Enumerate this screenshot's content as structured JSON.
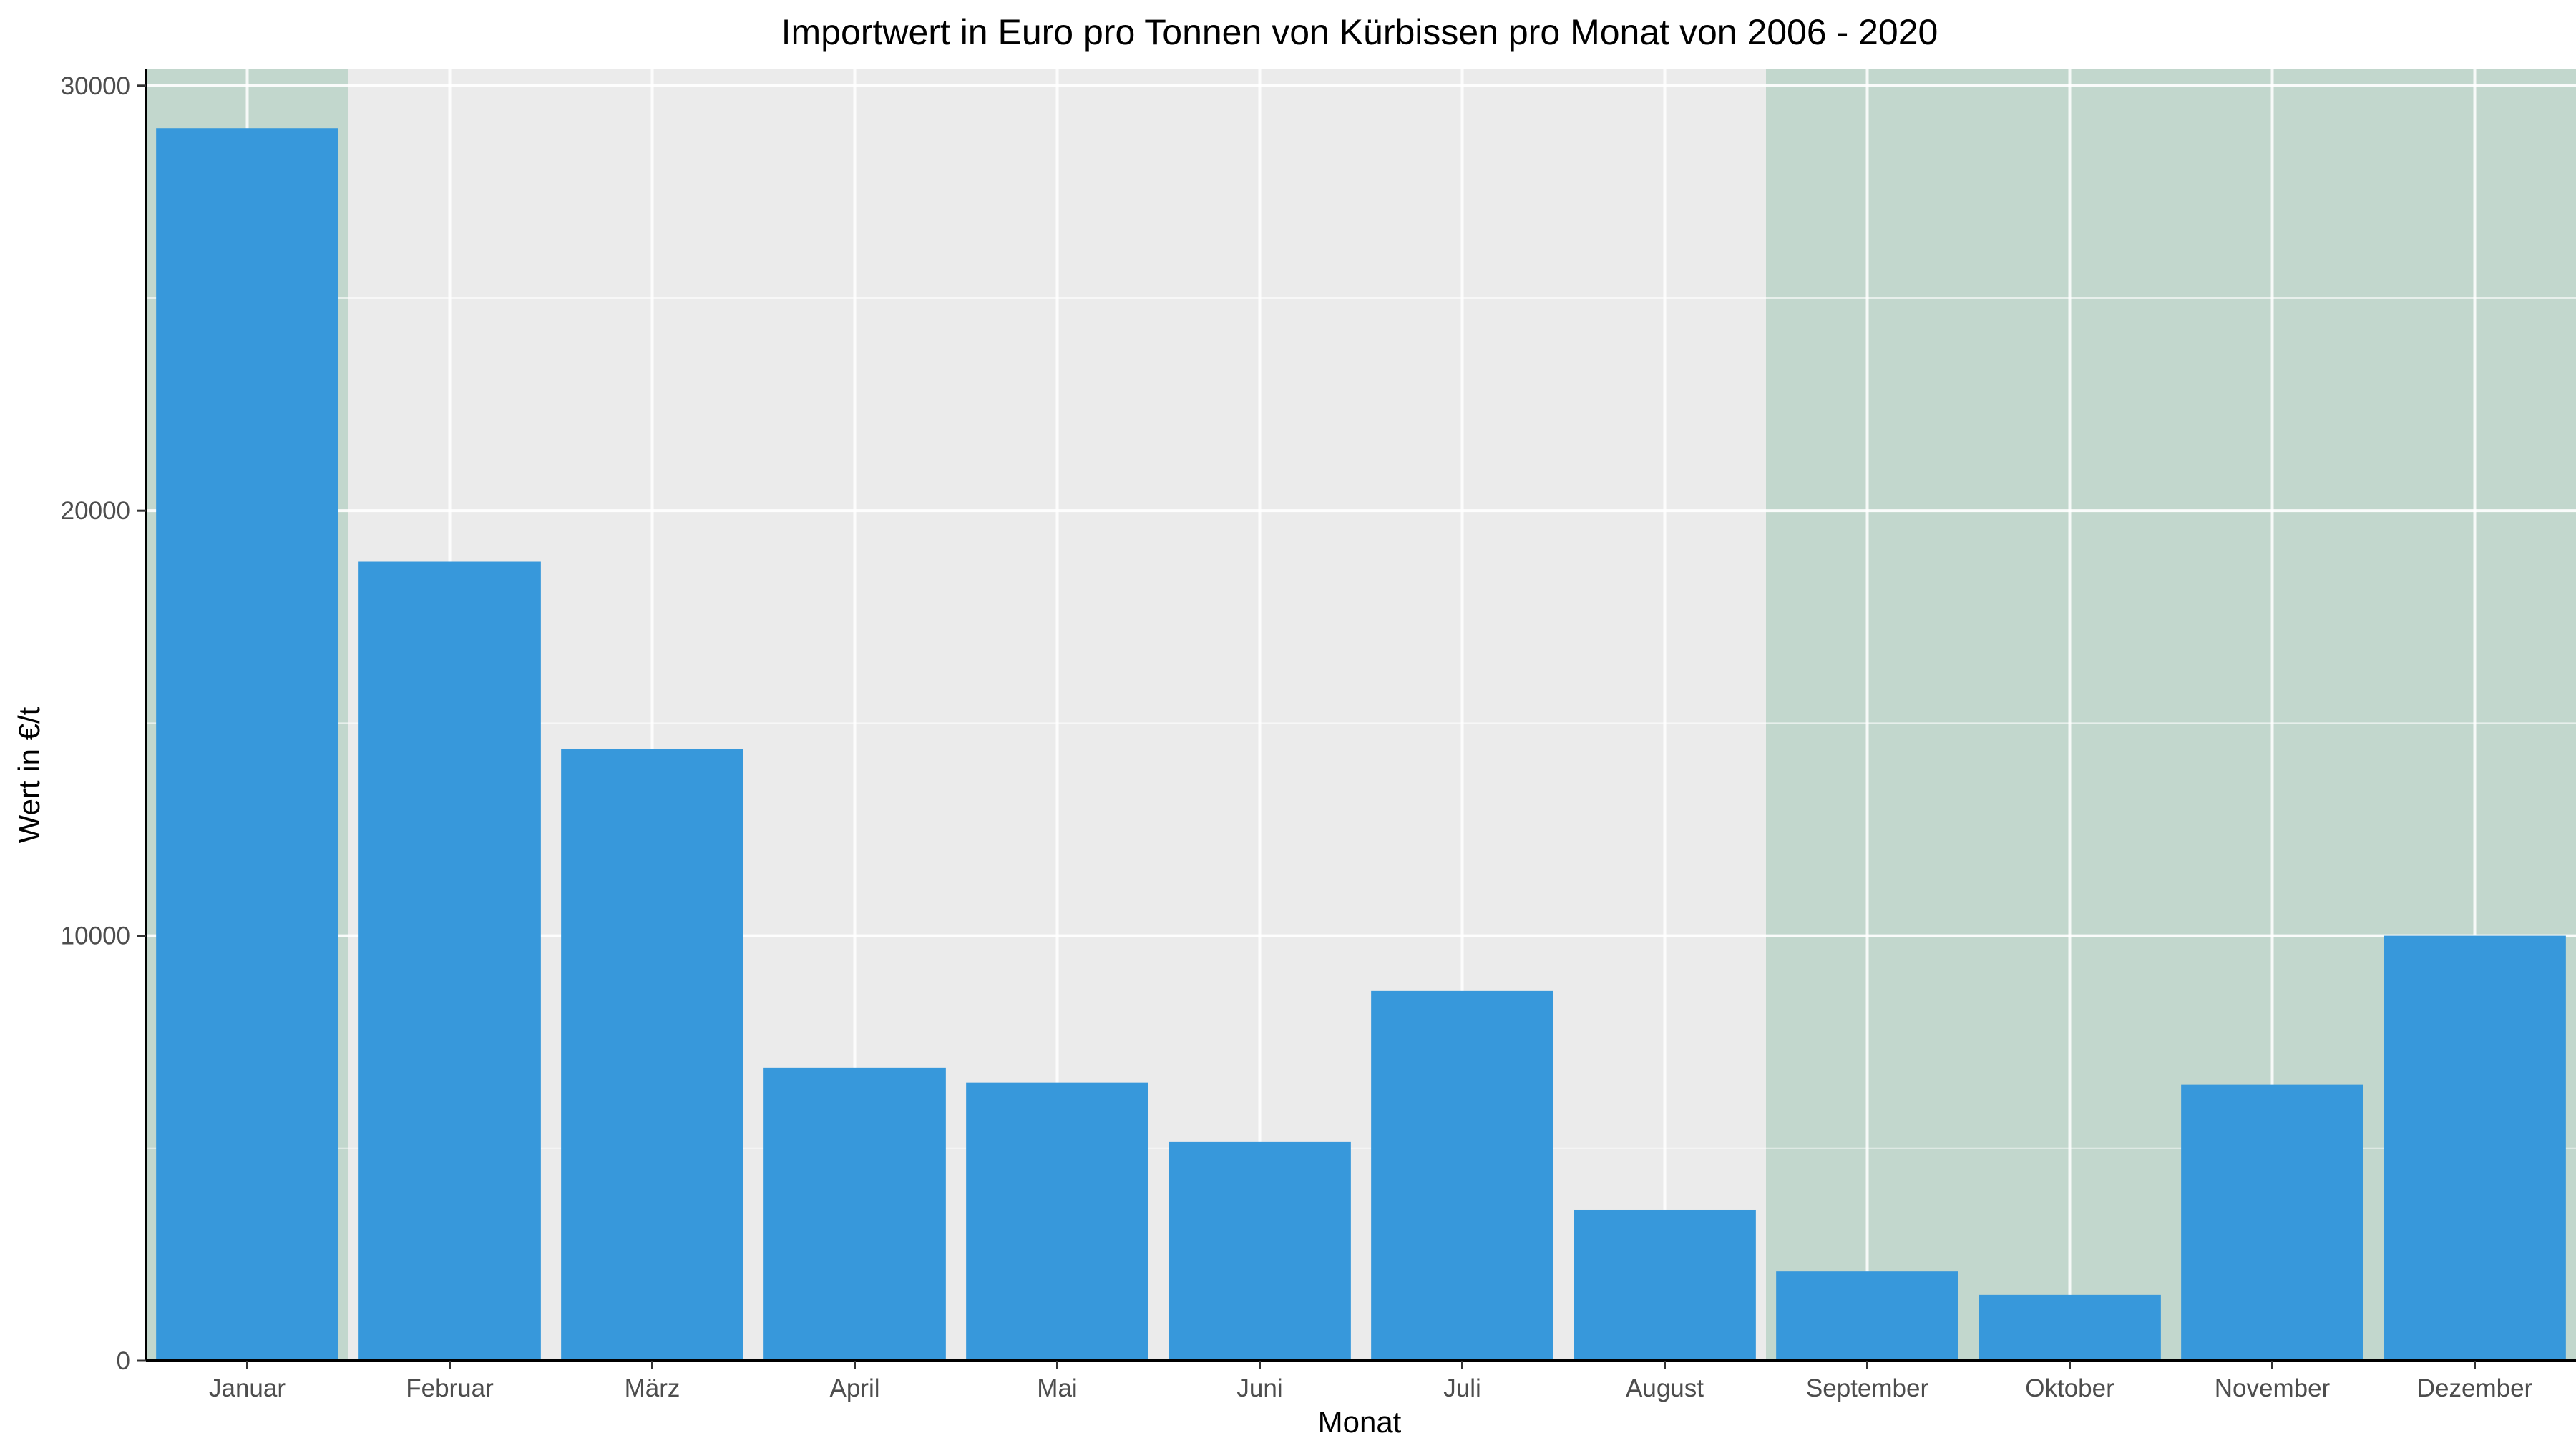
{
  "chart_data": {
    "type": "bar",
    "title": "Importwert in Euro pro Tonnen von Kürbissen pro Monat von 2006 - 2020",
    "xlabel": "Monat",
    "ylabel": "Wert in €/t",
    "categories": [
      "Januar",
      "Februar",
      "März",
      "April",
      "Mai",
      "Juni",
      "Juli",
      "August",
      "September",
      "Oktober",
      "November",
      "Dezember"
    ],
    "values": [
      29000,
      18800,
      14400,
      6900,
      6550,
      5150,
      8700,
      3550,
      2100,
      1550,
      6500,
      10000
    ],
    "ylim": [
      0,
      30400
    ],
    "yticks": [
      0,
      10000,
      20000,
      30000
    ],
    "highlighted_months": [
      "Januar",
      "September",
      "Oktober",
      "November",
      "Dezember"
    ],
    "grid": true,
    "legend": "none",
    "colors": {
      "bar": "#3798db",
      "panel": "#ebebeb",
      "highlight": "#c2d7cd",
      "grid": "#ffffff"
    }
  }
}
